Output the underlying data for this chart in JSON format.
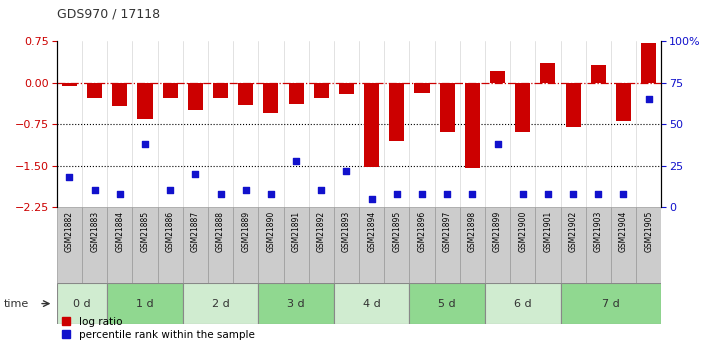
{
  "title": "GDS970 / 17118",
  "samples": [
    "GSM21882",
    "GSM21883",
    "GSM21884",
    "GSM21885",
    "GSM21886",
    "GSM21887",
    "GSM21888",
    "GSM21889",
    "GSM21890",
    "GSM21891",
    "GSM21892",
    "GSM21893",
    "GSM21894",
    "GSM21895",
    "GSM21896",
    "GSM21897",
    "GSM21898",
    "GSM21899",
    "GSM21900",
    "GSM21901",
    "GSM21902",
    "GSM21903",
    "GSM21904",
    "GSM21905"
  ],
  "log_ratio": [
    -0.05,
    -0.28,
    -0.42,
    -0.65,
    -0.28,
    -0.5,
    -0.28,
    -0.4,
    -0.55,
    -0.38,
    -0.28,
    -0.2,
    -1.52,
    -1.05,
    -0.18,
    -0.9,
    -1.55,
    0.22,
    -0.9,
    0.35,
    -0.8,
    0.32,
    -0.7,
    0.72
  ],
  "percentile_rank": [
    18,
    10,
    8,
    38,
    10,
    20,
    8,
    10,
    8,
    28,
    10,
    22,
    5,
    8,
    8,
    8,
    8,
    38,
    8,
    8,
    8,
    8,
    8,
    65
  ],
  "time_labels": [
    "0 d",
    "1 d",
    "2 d",
    "3 d",
    "4 d",
    "5 d",
    "6 d",
    "7 d"
  ],
  "time_ranges": [
    [
      0,
      2
    ],
    [
      2,
      5
    ],
    [
      5,
      8
    ],
    [
      8,
      11
    ],
    [
      11,
      14
    ],
    [
      14,
      17
    ],
    [
      17,
      20
    ],
    [
      20,
      24
    ]
  ],
  "bar_color": "#cc0000",
  "dot_color": "#1111cc",
  "ylim_left": [
    -2.25,
    0.75
  ],
  "ylim_right": [
    0,
    100
  ],
  "yticks_left": [
    0.75,
    0,
    -0.75,
    -1.5,
    -2.25
  ],
  "yticks_right": [
    100,
    75,
    50,
    25,
    0
  ],
  "ytick_right_labels": [
    "100%",
    "75",
    "50",
    "25",
    "0"
  ],
  "bg_color": "#ffffff",
  "title_color": "#333333",
  "bar_width": 0.6,
  "sample_box_color": "#cccccc",
  "sample_box_edge": "#999999",
  "time_colors": [
    "#d0ecd0",
    "#90d890",
    "#d0ecd0",
    "#90d890",
    "#d0ecd0",
    "#90d890",
    "#d0ecd0",
    "#90d890"
  ]
}
